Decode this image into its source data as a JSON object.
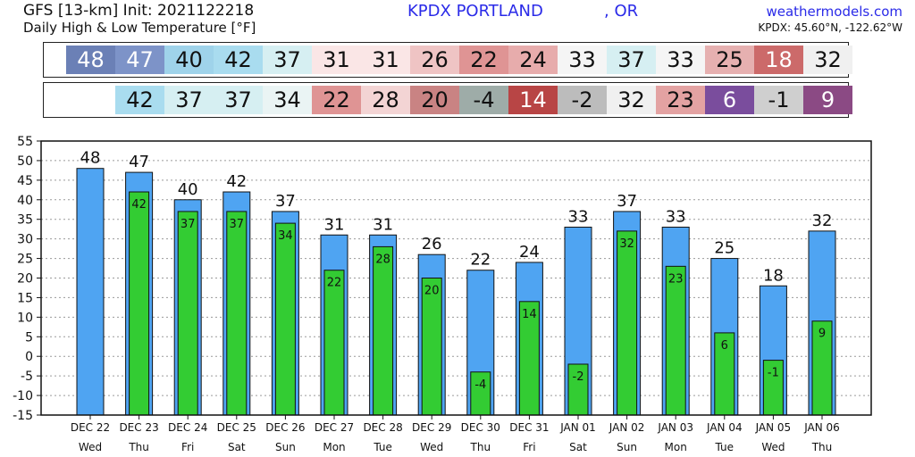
{
  "header": {
    "model_line": "GFS [13-km] Init: 2021122218",
    "subtitle": "Daily High & Low Temperature [°F]",
    "station": "KPDX PORTLAND",
    "state": ", OR",
    "site": "weathermodels.com",
    "coords": "KPDX: 45.60°N, -122.62°W"
  },
  "colors": {
    "high_bar": "#4fa4f2",
    "low_bar": "#33cc33"
  },
  "strips": {
    "high": [
      {
        "v": "48",
        "bg": "#6b80b6",
        "fg": "#ffffff"
      },
      {
        "v": "47",
        "bg": "#7d93c8",
        "fg": "#ffffff"
      },
      {
        "v": "40",
        "bg": "#9fd3ea",
        "fg": "#111111"
      },
      {
        "v": "42",
        "bg": "#a9dcef",
        "fg": "#111111"
      },
      {
        "v": "37",
        "bg": "#d6eff2",
        "fg": "#111111"
      },
      {
        "v": "31",
        "bg": "#fae6e6",
        "fg": "#111111"
      },
      {
        "v": "31",
        "bg": "#fae6e6",
        "fg": "#111111"
      },
      {
        "v": "26",
        "bg": "#efc4c4",
        "fg": "#111111"
      },
      {
        "v": "22",
        "bg": "#df9494",
        "fg": "#111111"
      },
      {
        "v": "24",
        "bg": "#e7acac",
        "fg": "#111111"
      },
      {
        "v": "33",
        "bg": "#f5f5f5",
        "fg": "#111111"
      },
      {
        "v": "37",
        "bg": "#d6eff2",
        "fg": "#111111"
      },
      {
        "v": "33",
        "bg": "#f5f5f5",
        "fg": "#111111"
      },
      {
        "v": "25",
        "bg": "#e6b0b0",
        "fg": "#111111"
      },
      {
        "v": "18",
        "bg": "#cc6a6a",
        "fg": "#ffffff"
      },
      {
        "v": "32",
        "bg": "#f0f0f0",
        "fg": "#111111"
      }
    ],
    "low": [
      {
        "v": "",
        "bg": "#ffffff",
        "fg": "#111111"
      },
      {
        "v": "42",
        "bg": "#a9dcef",
        "fg": "#111111"
      },
      {
        "v": "37",
        "bg": "#d6eff2",
        "fg": "#111111"
      },
      {
        "v": "37",
        "bg": "#d6eff2",
        "fg": "#111111"
      },
      {
        "v": "34",
        "bg": "#eaf4f4",
        "fg": "#111111"
      },
      {
        "v": "22",
        "bg": "#df9494",
        "fg": "#111111"
      },
      {
        "v": "28",
        "bg": "#f3d4d4",
        "fg": "#111111"
      },
      {
        "v": "20",
        "bg": "#c98383",
        "fg": "#111111"
      },
      {
        "v": "-4",
        "bg": "#9eaca8",
        "fg": "#111111"
      },
      {
        "v": "14",
        "bg": "#b84545",
        "fg": "#ffffff"
      },
      {
        "v": "-2",
        "bg": "#bcbcbc",
        "fg": "#111111"
      },
      {
        "v": "32",
        "bg": "#f0f0f0",
        "fg": "#111111"
      },
      {
        "v": "23",
        "bg": "#e3a2a2",
        "fg": "#111111"
      },
      {
        "v": "6",
        "bg": "#7a4d9d",
        "fg": "#ffffff"
      },
      {
        "v": "-1",
        "bg": "#cfcfcf",
        "fg": "#111111"
      },
      {
        "v": "9",
        "bg": "#8b4a84",
        "fg": "#ffffff"
      }
    ]
  },
  "chart_data": {
    "type": "bar",
    "title": "Daily High & Low Temperature [°F]",
    "categories": [
      "DEC 22",
      "DEC 23",
      "DEC 24",
      "DEC 25",
      "DEC 26",
      "DEC 27",
      "DEC 28",
      "DEC 29",
      "DEC 30",
      "DEC 31",
      "JAN 01",
      "JAN 02",
      "JAN 03",
      "JAN 04",
      "JAN 05",
      "JAN 06"
    ],
    "weekdays": [
      "Wed",
      "Thu",
      "Fri",
      "Sat",
      "Sun",
      "Mon",
      "Tue",
      "Wed",
      "Thu",
      "Fri",
      "Sat",
      "Sun",
      "Mon",
      "Tue",
      "Wed",
      "Thu"
    ],
    "series": [
      {
        "values": [
          48,
          47,
          40,
          42,
          37,
          31,
          31,
          26,
          22,
          24,
          33,
          37,
          33,
          25,
          18,
          32
        ]
      },
      {
        "values": [
          null,
          42,
          37,
          37,
          34,
          22,
          28,
          20,
          -4,
          14,
          -2,
          32,
          23,
          6,
          -1,
          9
        ]
      }
    ],
    "ylim": [
      -15,
      55
    ],
    "yticks": [
      55,
      50,
      45,
      40,
      35,
      30,
      25,
      20,
      15,
      10,
      5,
      0,
      -5,
      -10,
      -15
    ],
    "grid": true,
    "xlabel": "",
    "ylabel": ""
  }
}
